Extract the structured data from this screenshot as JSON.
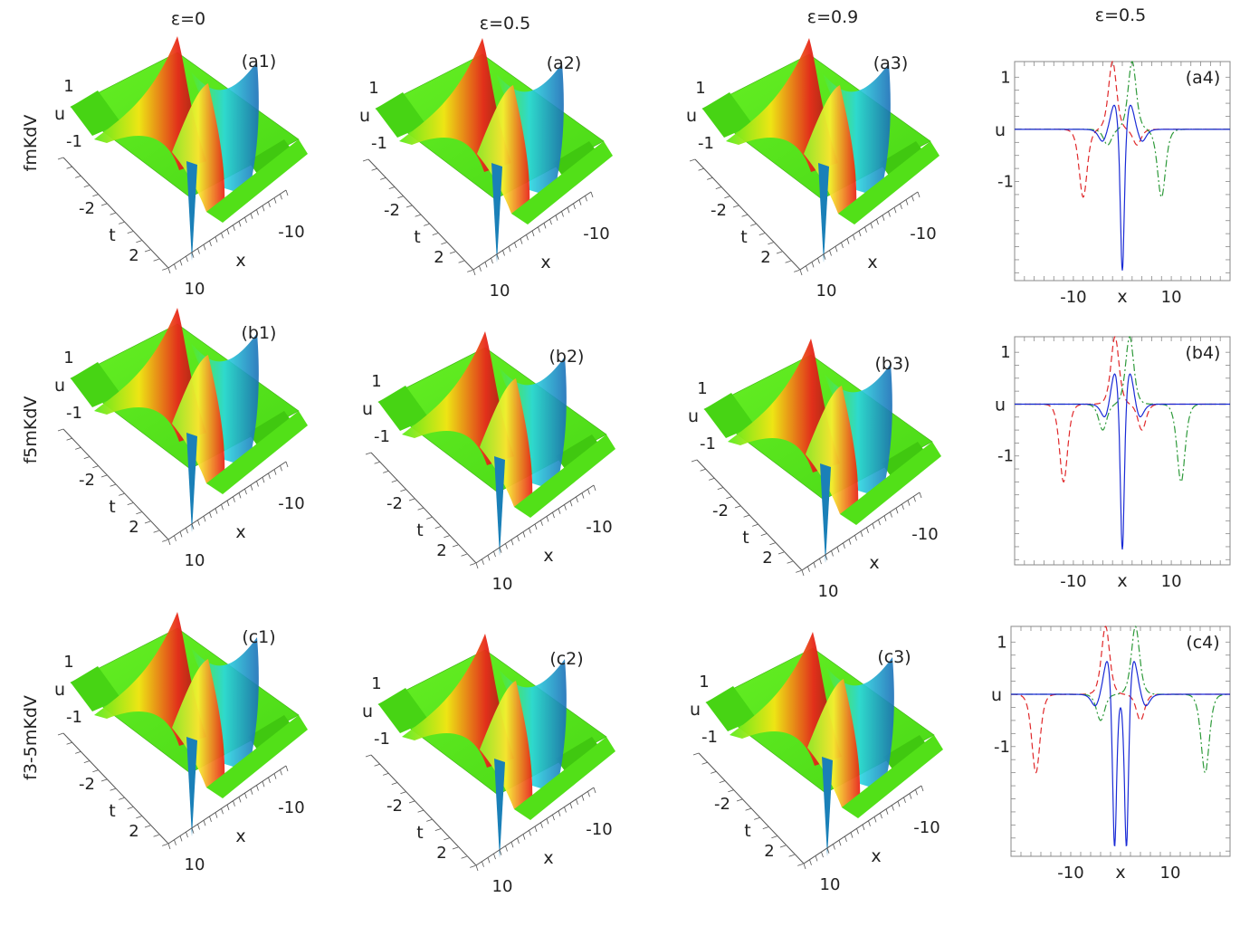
{
  "column_headers": [
    "ε=0",
    "ε=0.5",
    "ε=0.9",
    "ε=0.5"
  ],
  "row_labels": [
    "fmKdV",
    "f5mKdV",
    "f3-5mKdV"
  ],
  "colors": {
    "surface_flat": "#5aeb1c",
    "surface_peak": "#e8261a",
    "surface_trough": "#2ad8e0",
    "line_blue": "#1a2bd6",
    "line_red": "#e0282a",
    "line_green": "#2e9a3a"
  },
  "chart_data": [
    {
      "type": "surface",
      "label": "(a1)",
      "epsilon": 0,
      "equation": "fmKdV",
      "xlabel": "x",
      "ylabel": "t",
      "zlabel": "u",
      "x_ticks": [
        "10",
        "-10"
      ],
      "t_ticks": [
        "-2",
        "2"
      ],
      "u_ticks": [
        "1",
        "-1"
      ]
    },
    {
      "type": "surface",
      "label": "(a2)",
      "epsilon": 0.5,
      "equation": "fmKdV",
      "xlabel": "x",
      "ylabel": "t",
      "zlabel": "u",
      "x_ticks": [
        "10",
        "-10"
      ],
      "t_ticks": [
        "-2",
        "2"
      ],
      "u_ticks": [
        "1",
        "-1"
      ]
    },
    {
      "type": "surface",
      "label": "(a3)",
      "epsilon": 0.9,
      "equation": "fmKdV",
      "xlabel": "x",
      "ylabel": "t",
      "zlabel": "u",
      "x_ticks": [
        "10",
        "-10"
      ],
      "t_ticks": [
        "-2",
        "2"
      ],
      "u_ticks": [
        "1",
        "-1"
      ]
    },
    {
      "type": "line",
      "label": "(a4)",
      "epsilon": 0.5,
      "equation": "fmKdV",
      "xlabel": "x",
      "ylabel": "u",
      "x_ticks": [
        -10,
        10
      ],
      "y_ticks": [
        1,
        -1
      ],
      "xlim": [
        -22,
        22
      ],
      "ylim": [
        -2.9,
        1.3
      ],
      "series": [
        {
          "color": "#e0282a",
          "dash": "dashed",
          "sol": [
            [
              -8,
              -1.3
            ],
            [
              -2,
              1.3
            ],
            [
              3,
              -0.3
            ]
          ]
        },
        {
          "color": "#2e9a3a",
          "dash": "dashdot",
          "sol": [
            [
              8,
              -1.3
            ],
            [
              2,
              1.3
            ],
            [
              -3,
              -0.3
            ]
          ]
        },
        {
          "color": "#1a2bd6",
          "dash": "solid",
          "sol": [
            [
              0,
              -2.9
            ],
            [
              -1.6,
              0.5
            ],
            [
              1.6,
              0.5
            ],
            [
              -4,
              -0.25
            ],
            [
              4,
              -0.25
            ]
          ]
        }
      ]
    },
    {
      "type": "surface",
      "label": "(b1)",
      "epsilon": 0,
      "equation": "f5mKdV",
      "xlabel": "x",
      "ylabel": "t",
      "zlabel": "u",
      "x_ticks": [
        "10",
        "-10"
      ],
      "t_ticks": [
        "-2",
        "2"
      ],
      "u_ticks": [
        "1",
        "-1"
      ]
    },
    {
      "type": "surface",
      "label": "(b2)",
      "epsilon": 0.5,
      "equation": "f5mKdV",
      "xlabel": "x",
      "ylabel": "t",
      "zlabel": "u",
      "x_ticks": [
        "10",
        "-10"
      ],
      "t_ticks": [
        "-2",
        "2"
      ],
      "u_ticks": [
        "1",
        "-1"
      ]
    },
    {
      "type": "surface",
      "label": "(b3)",
      "epsilon": 0.9,
      "equation": "f5mKdV",
      "xlabel": "x",
      "ylabel": "t",
      "zlabel": "u",
      "x_ticks": [
        "10",
        "-10"
      ],
      "t_ticks": [
        "-2",
        "2"
      ],
      "u_ticks": [
        "1",
        "-1"
      ]
    },
    {
      "type": "line",
      "label": "(b4)",
      "epsilon": 0.5,
      "equation": "f5mKdV",
      "xlabel": "x",
      "ylabel": "u",
      "x_ticks": [
        -10,
        10
      ],
      "y_ticks": [
        1,
        -1
      ],
      "xlim": [
        -22,
        22
      ],
      "ylim": [
        -3.1,
        1.3
      ],
      "series": [
        {
          "color": "#e0282a",
          "dash": "dashed",
          "sol": [
            [
              -12,
              -1.5
            ],
            [
              -1.5,
              1.3
            ],
            [
              4,
              -0.5
            ]
          ]
        },
        {
          "color": "#2e9a3a",
          "dash": "dashdot",
          "sol": [
            [
              12,
              -1.5
            ],
            [
              1.5,
              1.3
            ],
            [
              -4,
              -0.5
            ]
          ]
        },
        {
          "color": "#1a2bd6",
          "dash": "solid",
          "sol": [
            [
              0,
              -3.1
            ],
            [
              -1.5,
              0.65
            ],
            [
              1.5,
              0.65
            ],
            [
              -3.5,
              -0.3
            ],
            [
              3.5,
              -0.3
            ]
          ]
        }
      ]
    },
    {
      "type": "surface",
      "label": "(c1)",
      "epsilon": 0,
      "equation": "f3-5mKdV",
      "xlabel": "x",
      "ylabel": "t",
      "zlabel": "u",
      "x_ticks": [
        "10",
        "-10"
      ],
      "t_ticks": [
        "-2",
        "2"
      ],
      "u_ticks": [
        "1",
        "-1"
      ]
    },
    {
      "type": "surface",
      "label": "(c2)",
      "epsilon": 0.5,
      "equation": "f3-5mKdV",
      "xlabel": "x",
      "ylabel": "t",
      "zlabel": "u",
      "x_ticks": [
        "10",
        "-10"
      ],
      "t_ticks": [
        "-2",
        "2"
      ],
      "u_ticks": [
        "1",
        "-1"
      ]
    },
    {
      "type": "surface",
      "label": "(c3)",
      "epsilon": 0.9,
      "equation": "f3-5mKdV",
      "xlabel": "x",
      "ylabel": "t",
      "zlabel": "u",
      "x_ticks": [
        "10",
        "-10"
      ],
      "t_ticks": [
        "-2",
        "2"
      ],
      "u_ticks": [
        "1",
        "-1"
      ]
    },
    {
      "type": "line",
      "label": "(c4)",
      "epsilon": 0.5,
      "equation": "f3-5mKdV",
      "xlabel": "x",
      "ylabel": "u",
      "x_ticks": [
        -10,
        10
      ],
      "y_ticks": [
        1,
        -1
      ],
      "xlim": [
        -22,
        22
      ],
      "ylim": [
        -3.1,
        1.3
      ],
      "series": [
        {
          "color": "#e0282a",
          "dash": "dashed",
          "sol": [
            [
              -17,
              -1.5
            ],
            [
              -3,
              1.3
            ],
            [
              4,
              -0.5
            ]
          ]
        },
        {
          "color": "#2e9a3a",
          "dash": "dashdot",
          "sol": [
            [
              17,
              -1.5
            ],
            [
              3,
              1.3
            ],
            [
              -4,
              -0.5
            ]
          ]
        },
        {
          "color": "#1a2bd6",
          "dash": "solid",
          "sol": [
            [
              -1.2,
              -3.1
            ],
            [
              1.2,
              -3.1
            ],
            [
              -2.6,
              0.7
            ],
            [
              2.6,
              0.7
            ],
            [
              -5,
              -0.25
            ],
            [
              5,
              -0.25
            ]
          ]
        }
      ]
    }
  ]
}
